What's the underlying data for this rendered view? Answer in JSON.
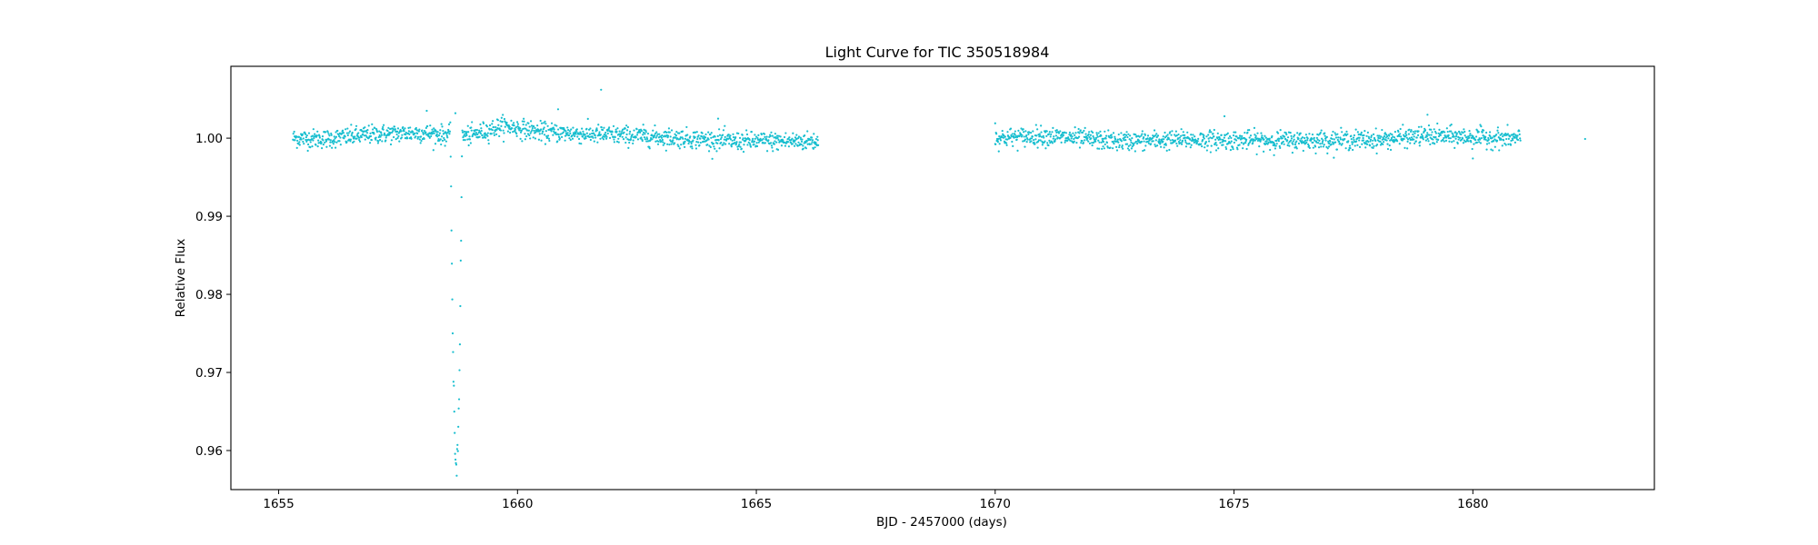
{
  "chart_data": {
    "type": "scatter",
    "title": "Light Curve for TIC 350518984",
    "xlabel": "BJD - 2457000 (days)",
    "ylabel": "Relative Flux",
    "xlim": [
      1654.0,
      1683.8
    ],
    "ylim": [
      0.955,
      1.0092
    ],
    "x_ticks": [
      1655,
      1660,
      1665,
      1670,
      1675,
      1680
    ],
    "x_tick_labels": [
      "1655",
      "1660",
      "1665",
      "1670",
      "1675",
      "1680"
    ],
    "y_ticks": [
      0.96,
      0.97,
      0.98,
      0.99,
      1.0
    ],
    "y_tick_labels": [
      "0.96",
      "0.97",
      "0.98",
      "0.99",
      "1.00"
    ],
    "grid": false,
    "marker_color": "#17becf",
    "series": [
      {
        "segments": [
          {
            "x_start": 1655.3,
            "x_end": 1666.3
          },
          {
            "x_start": 1670.0,
            "x_end": 1681.0
          }
        ],
        "baseline_flux": 1.0,
        "scatter_amplitude": 0.0006,
        "trend": [
          {
            "x": 1655.3,
            "y": 1.0
          },
          {
            "x": 1656.0,
            "y": 0.9999
          },
          {
            "x": 1657.0,
            "y": 1.0005
          },
          {
            "x": 1658.0,
            "y": 1.0007
          },
          {
            "x": 1658.5,
            "y": 1.0004
          },
          {
            "x": 1659.0,
            "y": 1.0003
          },
          {
            "x": 1659.7,
            "y": 1.0016
          },
          {
            "x": 1660.5,
            "y": 1.0008
          },
          {
            "x": 1661.5,
            "y": 1.0005
          },
          {
            "x": 1662.5,
            "y": 1.0003
          },
          {
            "x": 1663.5,
            "y": 1.0
          },
          {
            "x": 1664.5,
            "y": 0.9996
          },
          {
            "x": 1666.3,
            "y": 0.9996
          },
          {
            "x": 1670.0,
            "y": 1.0
          },
          {
            "x": 1671.0,
            "y": 1.0003
          },
          {
            "x": 1672.5,
            "y": 0.9996
          },
          {
            "x": 1674.0,
            "y": 0.9998
          },
          {
            "x": 1676.0,
            "y": 0.9997
          },
          {
            "x": 1678.0,
            "y": 0.9998
          },
          {
            "x": 1679.0,
            "y": 1.0003
          },
          {
            "x": 1681.0,
            "y": 0.9999
          }
        ],
        "transit": {
          "center": 1658.72,
          "depth_min": 0.958,
          "half_width_days": 0.12
        },
        "outliers": [
          {
            "x": 1658.1,
            "y": 1.0035
          },
          {
            "x": 1658.7,
            "y": 1.0032
          },
          {
            "x": 1661.75,
            "y": 1.0062
          },
          {
            "x": 1660.85,
            "y": 1.0037
          },
          {
            "x": 1664.2,
            "y": 1.0025
          },
          {
            "x": 1674.8,
            "y": 1.0028
          },
          {
            "x": 1679.05,
            "y": 1.003
          },
          {
            "x": 1680.0,
            "y": 0.9974
          },
          {
            "x": 1670.0,
            "y": 1.0019
          },
          {
            "x": 1682.35,
            "y": 0.9999
          }
        ]
      }
    ]
  }
}
